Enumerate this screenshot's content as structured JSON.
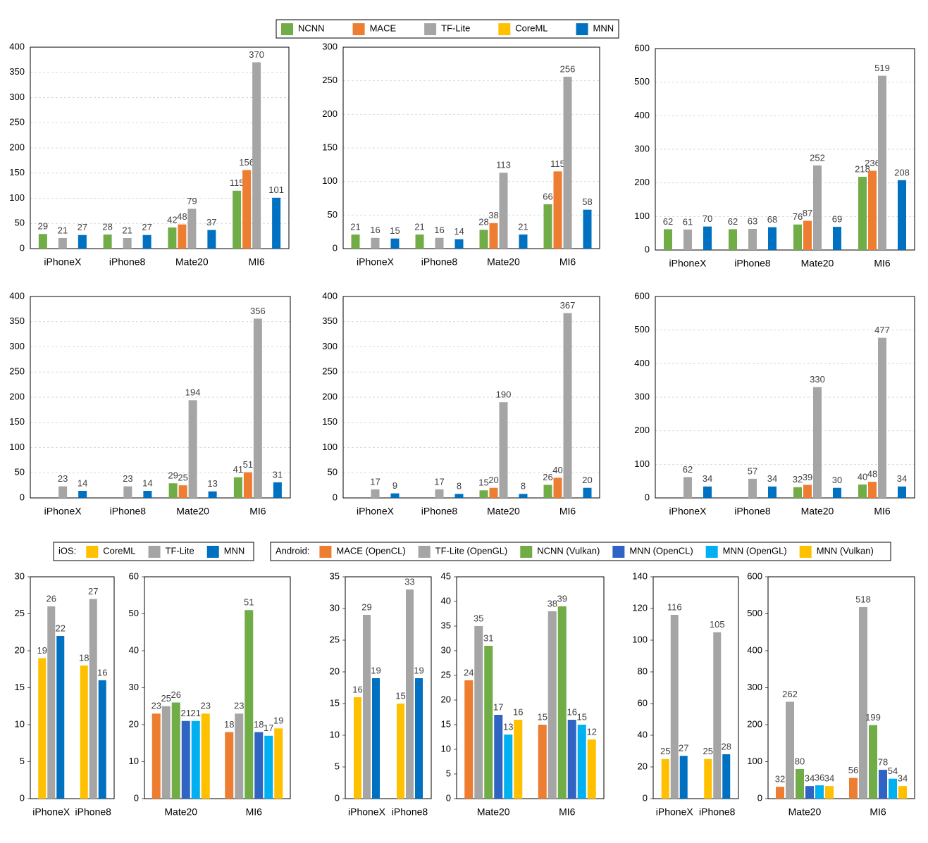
{
  "legends": [
    {
      "items": [
        {
          "name": "NCNN",
          "color": "#70ad47"
        },
        {
          "name": "MACE",
          "color": "#ed7d31"
        },
        {
          "name": "TF-Lite",
          "color": "#a5a5a5"
        },
        {
          "name": "CoreML",
          "color": "#ffc000"
        },
        {
          "name": "MNN",
          "color": "#0070c0"
        }
      ]
    },
    {
      "title": "iOS:",
      "items": [
        {
          "name": "CoreML",
          "color": "#ffc000"
        },
        {
          "name": "TF-Lite",
          "color": "#a5a5a5"
        },
        {
          "name": "MNN",
          "color": "#0070c0"
        }
      ]
    },
    {
      "title": "Android:",
      "items": [
        {
          "name": "MACE (OpenCL)",
          "color": "#ed7d31"
        },
        {
          "name": "TF-Lite (OpenGL)",
          "color": "#a5a5a5"
        },
        {
          "name": "NCNN (Vulkan)",
          "color": "#70ad47"
        },
        {
          "name": "MNN (OpenCL)",
          "color": "#2f64c4"
        },
        {
          "name": "MNN (OpenGL)",
          "color": "#00b0f0"
        },
        {
          "name": "MNN (Vulkan)",
          "color": "#ffc000"
        }
      ]
    }
  ],
  "chart_data": [
    {
      "type": "bar",
      "categories": [
        "iPhoneX",
        "iPhone8",
        "Mate20",
        "MI6"
      ],
      "series": [
        {
          "values": [
            29,
            28,
            42,
            115
          ]
        },
        {
          "values": [
            null,
            null,
            48,
            156
          ]
        },
        {
          "values": [
            21,
            21,
            79,
            370
          ]
        },
        {
          "values": [
            null,
            null,
            null,
            null
          ]
        },
        {
          "values": [
            27,
            27,
            37,
            101
          ]
        }
      ],
      "ylim": [
        0,
        400
      ],
      "yticks": [
        0,
        50,
        100,
        150,
        200,
        250,
        300,
        350,
        400
      ],
      "grid": true
    },
    {
      "type": "bar",
      "categories": [
        "iPhoneX",
        "iPhone8",
        "Mate20",
        "MI6"
      ],
      "series": [
        {
          "values": [
            21,
            21,
            28,
            66
          ]
        },
        {
          "values": [
            null,
            null,
            38,
            115
          ]
        },
        {
          "values": [
            16,
            16,
            113,
            256
          ]
        },
        {
          "values": [
            null,
            null,
            null,
            null
          ]
        },
        {
          "values": [
            15,
            14,
            21,
            58
          ]
        }
      ],
      "ylim": [
        0,
        300
      ],
      "yticks": [
        0,
        50,
        100,
        150,
        200,
        250,
        300
      ],
      "grid": true
    },
    {
      "type": "bar",
      "categories": [
        "iPhoneX",
        "iPhone8",
        "Mate20",
        "MI6"
      ],
      "series": [
        {
          "values": [
            62,
            62,
            76,
            218
          ]
        },
        {
          "values": [
            null,
            null,
            87,
            236
          ]
        },
        {
          "values": [
            61,
            63,
            252,
            519
          ]
        },
        {
          "values": [
            null,
            null,
            null,
            null
          ]
        },
        {
          "values": [
            70,
            68,
            69,
            208
          ]
        }
      ],
      "ylim": [
        0,
        600
      ],
      "yticks": [
        0,
        100,
        200,
        300,
        400,
        500,
        600
      ],
      "grid": true
    },
    {
      "type": "bar",
      "categories": [
        "iPhoneX",
        "iPhone8",
        "Mate20",
        "MI6"
      ],
      "series": [
        {
          "values": [
            null,
            null,
            29,
            41
          ]
        },
        {
          "values": [
            null,
            null,
            25,
            51
          ]
        },
        {
          "values": [
            23,
            23,
            194,
            356
          ]
        },
        {
          "values": [
            null,
            null,
            null,
            null
          ]
        },
        {
          "values": [
            14,
            14,
            13,
            31
          ]
        }
      ],
      "ylim": [
        0,
        400
      ],
      "yticks": [
        0,
        50,
        100,
        150,
        200,
        250,
        300,
        350,
        400
      ],
      "grid": true
    },
    {
      "type": "bar",
      "categories": [
        "iPhoneX",
        "iPhone8",
        "Mate20",
        "MI6"
      ],
      "series": [
        {
          "values": [
            null,
            null,
            15,
            26
          ]
        },
        {
          "values": [
            null,
            null,
            20,
            40
          ]
        },
        {
          "values": [
            17,
            17,
            190,
            367
          ]
        },
        {
          "values": [
            null,
            null,
            null,
            null
          ]
        },
        {
          "values": [
            9,
            8,
            8,
            20
          ]
        }
      ],
      "ylim": [
        0,
        400
      ],
      "yticks": [
        0,
        50,
        100,
        150,
        200,
        250,
        300,
        350,
        400
      ],
      "grid": true
    },
    {
      "type": "bar",
      "categories": [
        "iPhoneX",
        "iPhone8",
        "Mate20",
        "MI6"
      ],
      "series": [
        {
          "values": [
            null,
            null,
            32,
            40
          ]
        },
        {
          "values": [
            null,
            null,
            39,
            48
          ]
        },
        {
          "values": [
            62,
            57,
            330,
            477
          ]
        },
        {
          "values": [
            null,
            null,
            null,
            null
          ]
        },
        {
          "values": [
            34,
            34,
            30,
            34
          ]
        }
      ],
      "ylim": [
        0,
        600
      ],
      "yticks": [
        0,
        100,
        200,
        300,
        400,
        500,
        600
      ],
      "grid": true
    },
    {
      "type": "bar",
      "categories": [
        "iPhoneX",
        "iPhone8"
      ],
      "series": [
        {
          "values": [
            19,
            18
          ]
        },
        {
          "values": [
            26,
            27
          ]
        },
        {
          "values": [
            22,
            16
          ]
        }
      ],
      "ylim": [
        0,
        30
      ],
      "yticks": [
        0,
        5,
        10,
        15,
        20,
        25,
        30
      ],
      "grid": false
    },
    {
      "type": "bar",
      "categories": [
        "Mate20",
        "MI6"
      ],
      "series": [
        {
          "values": [
            23,
            18
          ]
        },
        {
          "values": [
            25,
            23
          ]
        },
        {
          "values": [
            26,
            51
          ]
        },
        {
          "values": [
            21,
            18
          ]
        },
        {
          "values": [
            21,
            17
          ]
        },
        {
          "values": [
            23,
            19
          ]
        }
      ],
      "ylim": [
        0,
        60
      ],
      "yticks": [
        0,
        10,
        20,
        30,
        40,
        50,
        60
      ],
      "grid": false
    },
    {
      "type": "bar",
      "categories": [
        "iPhoneX",
        "iPhone8"
      ],
      "series": [
        {
          "values": [
            16,
            15
          ]
        },
        {
          "values": [
            29,
            33
          ]
        },
        {
          "values": [
            19,
            19
          ]
        }
      ],
      "ylim": [
        0,
        35
      ],
      "yticks": [
        0,
        5,
        10,
        15,
        20,
        25,
        30,
        35
      ],
      "grid": false
    },
    {
      "type": "bar",
      "categories": [
        "Mate20",
        "MI6"
      ],
      "series": [
        {
          "values": [
            24,
            15
          ]
        },
        {
          "values": [
            35,
            38
          ]
        },
        {
          "values": [
            31,
            39
          ]
        },
        {
          "values": [
            17,
            16
          ]
        },
        {
          "values": [
            13,
            15
          ]
        },
        {
          "values": [
            16,
            12
          ]
        }
      ],
      "ylim": [
        0,
        45
      ],
      "yticks": [
        0,
        5,
        10,
        15,
        20,
        25,
        30,
        35,
        40,
        45
      ],
      "grid": false
    },
    {
      "type": "bar",
      "categories": [
        "iPhoneX",
        "iPhone8"
      ],
      "series": [
        {
          "values": [
            25,
            25
          ]
        },
        {
          "values": [
            116,
            105
          ]
        },
        {
          "values": [
            27,
            28
          ]
        }
      ],
      "ylim": [
        0,
        140
      ],
      "yticks": [
        0,
        20,
        40,
        60,
        80,
        100,
        120,
        140
      ],
      "grid": false
    },
    {
      "type": "bar",
      "categories": [
        "Mate20",
        "MI6"
      ],
      "series": [
        {
          "values": [
            32,
            56
          ]
        },
        {
          "values": [
            262,
            518
          ]
        },
        {
          "values": [
            80,
            199
          ]
        },
        {
          "values": [
            34,
            78
          ]
        },
        {
          "values": [
            36,
            54
          ]
        },
        {
          "values": [
            34,
            34
          ]
        }
      ],
      "ylim": [
        0,
        600
      ],
      "yticks": [
        0,
        100,
        200,
        300,
        400,
        500,
        600
      ],
      "grid": false
    }
  ]
}
